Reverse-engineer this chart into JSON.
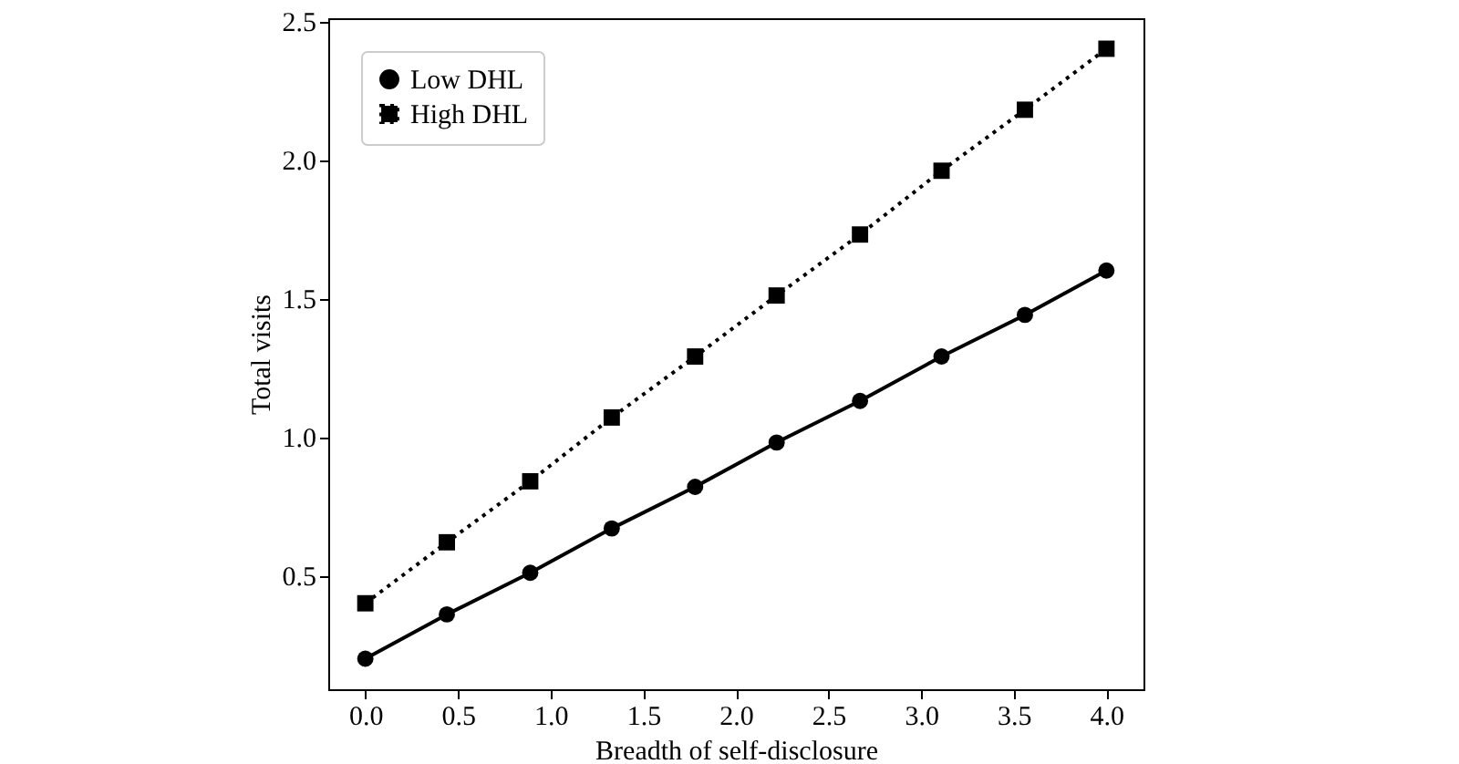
{
  "chart_data": {
    "type": "line",
    "xlabel": "Breadth of self-disclosure",
    "ylabel": "Total visits",
    "x": [
      0,
      0.44,
      0.89,
      1.33,
      1.78,
      2.22,
      2.67,
      3.11,
      3.56,
      4.0
    ],
    "series": [
      {
        "name": "Low DHL",
        "color": "#000000",
        "marker": "circle",
        "line_style": "solid",
        "values": [
          0.2,
          0.36,
          0.51,
          0.67,
          0.82,
          0.98,
          1.13,
          1.29,
          1.44,
          1.6
        ]
      },
      {
        "name": "High DHL",
        "color": "#000000",
        "marker": "square",
        "line_style": "dotted",
        "values": [
          0.4,
          0.62,
          0.84,
          1.07,
          1.29,
          1.51,
          1.73,
          1.96,
          2.18,
          2.4
        ]
      }
    ],
    "xlim": [
      -0.2,
      4.2
    ],
    "xticks": [
      {
        "value": 0,
        "label": "0.0"
      },
      0.5,
      {
        "value": 1,
        "label": "1.0"
      },
      1.5,
      {
        "value": 2,
        "label": "2.0"
      },
      2.5,
      {
        "value": 3,
        "label": "3.0"
      },
      3.5,
      {
        "value": 4,
        "label": "4.0"
      }
    ],
    "ylim": [
      0.09,
      2.51
    ],
    "yticks": [
      0.5,
      {
        "value": 1,
        "label": "1.0"
      },
      1.5,
      {
        "value": 2,
        "label": "2.0"
      },
      2.5
    ],
    "grid": false,
    "legend": "top left"
  }
}
